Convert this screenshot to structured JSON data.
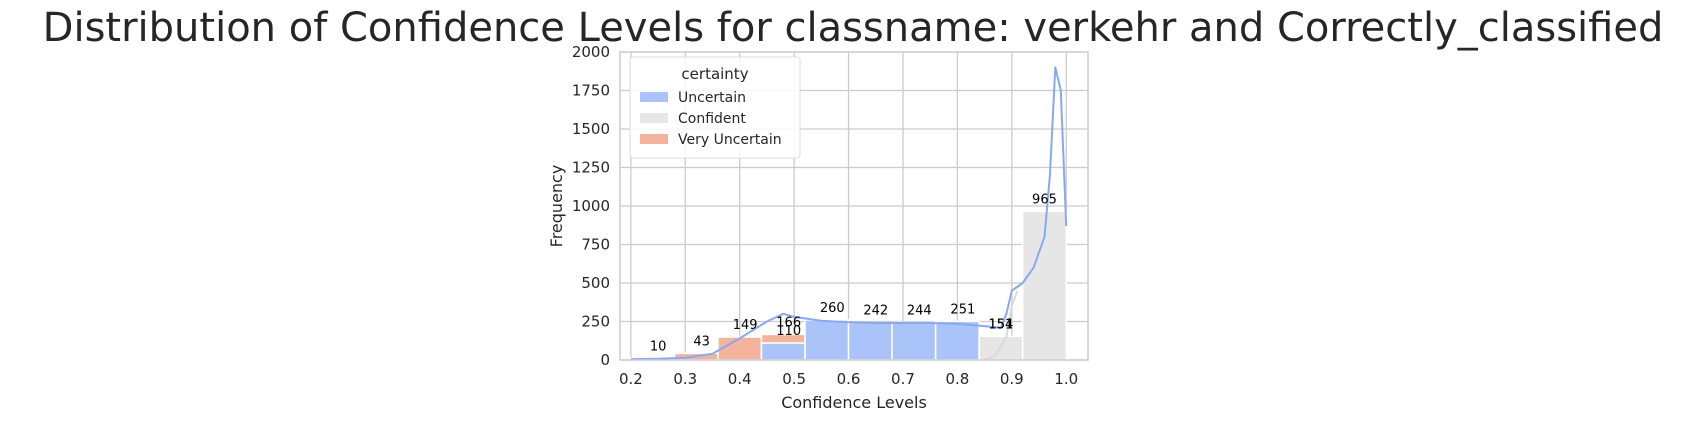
{
  "chart_data": {
    "type": "bar",
    "title": "Distribution of Confidence Levels for classname: verkehr and Correctly_classified",
    "xlabel": "Confidence Levels",
    "ylabel": "Frequency",
    "xlim": [
      0.18,
      1.04
    ],
    "ylim": [
      0,
      2000
    ],
    "xticks": [
      "0.2",
      "0.3",
      "0.4",
      "0.5",
      "0.6",
      "0.7",
      "0.8",
      "0.9",
      "1.0"
    ],
    "yticks": [
      "0",
      "250",
      "500",
      "750",
      "1000",
      "1250",
      "1500",
      "1750",
      "2000"
    ],
    "grid": true,
    "legend": {
      "title": "certainty",
      "placement": "top-left",
      "entries": [
        "Uncertain",
        "Confident",
        "Very Uncertain"
      ]
    },
    "bin_edges": [
      0.2,
      0.28,
      0.36,
      0.44,
      0.52,
      0.6,
      0.68,
      0.76,
      0.84,
      0.92,
      1.0
    ],
    "series": [
      {
        "name": "Very Uncertain",
        "color": "#f4b49c",
        "bins": [
          {
            "x0": 0.2,
            "x1": 0.28,
            "value": 10
          },
          {
            "x0": 0.28,
            "x1": 0.36,
            "value": 43
          },
          {
            "x0": 0.36,
            "x1": 0.44,
            "value": 149
          },
          {
            "x0": 0.44,
            "x1": 0.52,
            "value": 166
          }
        ]
      },
      {
        "name": "Uncertain",
        "color": "#aac4f9",
        "bins": [
          {
            "x0": 0.44,
            "x1": 0.52,
            "value": 110
          },
          {
            "x0": 0.52,
            "x1": 0.6,
            "value": 260
          },
          {
            "x0": 0.6,
            "x1": 0.68,
            "value": 242
          },
          {
            "x0": 0.68,
            "x1": 0.76,
            "value": 244
          },
          {
            "x0": 0.76,
            "x1": 0.84,
            "value": 251
          },
          {
            "x0": 0.84,
            "x1": 0.92,
            "value": 151
          }
        ]
      },
      {
        "name": "Confident",
        "color": "#e6e6e6",
        "bins": [
          {
            "x0": 0.84,
            "x1": 0.92,
            "value": 154
          },
          {
            "x0": 0.92,
            "x1": 1.0,
            "value": 965
          }
        ]
      }
    ],
    "kde": [
      {
        "name": "Uncertain",
        "color": "#88a9f0",
        "points": [
          [
            0.2,
            5
          ],
          [
            0.25,
            8
          ],
          [
            0.3,
            15
          ],
          [
            0.35,
            40
          ],
          [
            0.4,
            140
          ],
          [
            0.45,
            250
          ],
          [
            0.48,
            300
          ],
          [
            0.5,
            280
          ],
          [
            0.55,
            255
          ],
          [
            0.6,
            245
          ],
          [
            0.65,
            240
          ],
          [
            0.7,
            240
          ],
          [
            0.75,
            240
          ],
          [
            0.8,
            235
          ],
          [
            0.85,
            220
          ],
          [
            0.88,
            210
          ],
          [
            0.89,
            300
          ],
          [
            0.9,
            450
          ],
          [
            0.92,
            500
          ],
          [
            0.94,
            600
          ],
          [
            0.96,
            800
          ],
          [
            0.97,
            1200
          ],
          [
            0.98,
            1900
          ],
          [
            0.99,
            1750
          ],
          [
            1.0,
            870
          ]
        ]
      },
      {
        "name": "Confident",
        "color": "#d9d9d9",
        "points": [
          [
            0.85,
            0
          ],
          [
            0.87,
            30
          ],
          [
            0.89,
            150
          ],
          [
            0.9,
            350
          ],
          [
            0.91,
            450
          ]
        ]
      }
    ],
    "data_labels": [
      {
        "text": "10",
        "x": 0.25,
        "y": 10
      },
      {
        "text": "43",
        "x": 0.33,
        "y": 43
      },
      {
        "text": "149",
        "x": 0.41,
        "y": 149
      },
      {
        "text": "166",
        "x": 0.49,
        "y": 166
      },
      {
        "text": "110",
        "x": 0.49,
        "y": 110
      },
      {
        "text": "260",
        "x": 0.57,
        "y": 260
      },
      {
        "text": "242",
        "x": 0.65,
        "y": 242
      },
      {
        "text": "244",
        "x": 0.73,
        "y": 244
      },
      {
        "text": "251",
        "x": 0.81,
        "y": 251
      },
      {
        "text": "154",
        "x": 0.88,
        "y": 154
      },
      {
        "text": "151",
        "x": 0.88,
        "y": 151
      },
      {
        "text": "965",
        "x": 0.96,
        "y": 965
      }
    ]
  }
}
